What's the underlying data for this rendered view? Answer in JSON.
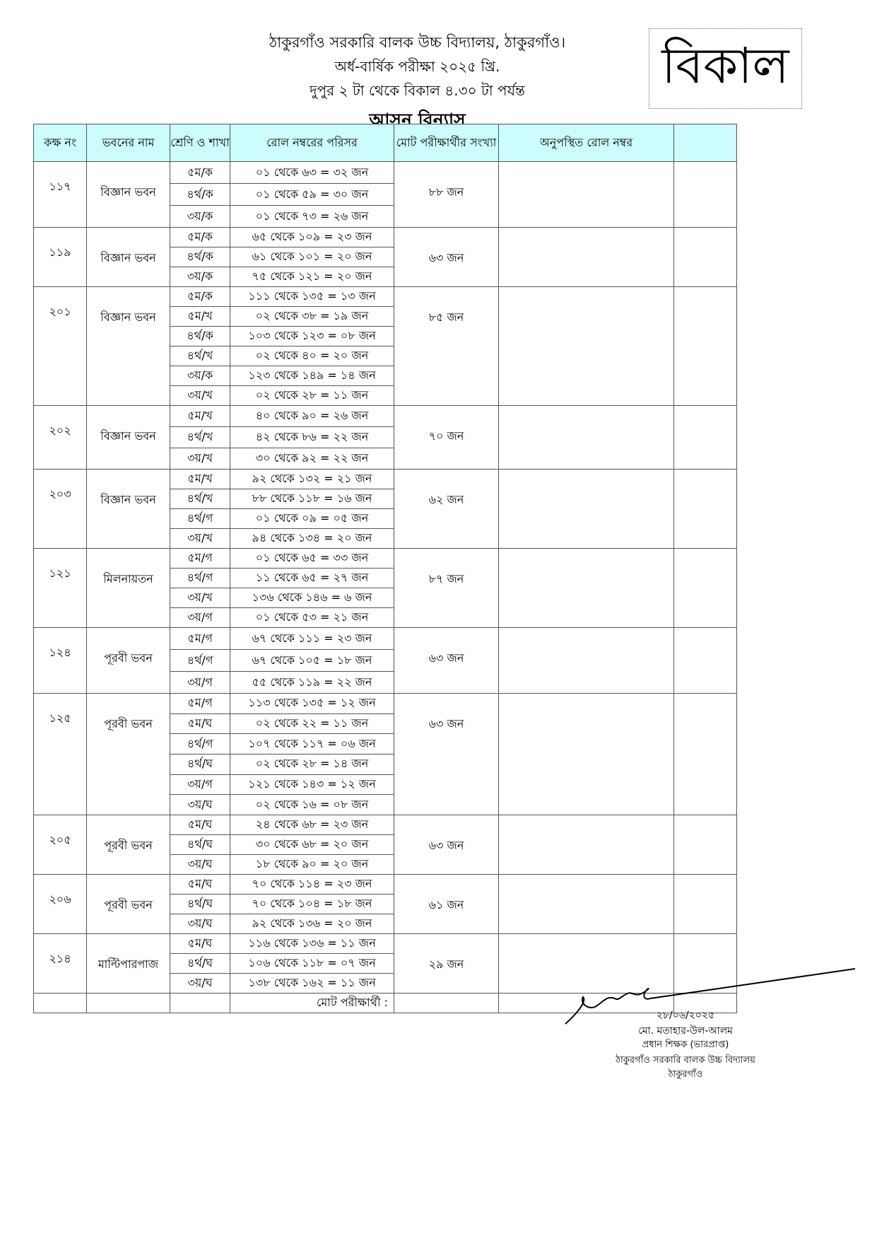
{
  "header": {
    "school": "ঠাকুরগাঁও সরকারি বালক উচ্চ বিদ্যালয়, ঠাকুরগাঁও।",
    "exam": "অর্ধ-বার্ষিক পরীক্ষা ২০২৫ খ্রি.",
    "time": "দুপুর ২ টা থেকে বিকাল ৪.৩০ টা পর্যন্ত",
    "title": "আসন বিন্যাস",
    "shift": "বিকাল"
  },
  "table": {
    "columns": [
      "কক্ষ নং",
      "ভবনের নাম",
      "শ্রেণি ও শাখা",
      "রোল নম্বরের পরিসর",
      "মোট পরীক্ষার্থীর সংখ্যা",
      "অনুপস্থিত রোল নম্বর",
      ""
    ],
    "header_color": "#ccfcfc",
    "rooms": [
      {
        "room": "১১৭",
        "building": "বিজ্ঞান ভবন",
        "total": "৮৮ জন",
        "rows": [
          {
            "class": "৫ম/ক",
            "range": "০১ থেকে ৬৩ = ৩২ জন"
          },
          {
            "class": "৪র্থ/ক",
            "range": "০১ থেকে ৫৯ = ৩০ জন"
          },
          {
            "class": "৩য়/ক",
            "range": "০১ থেকে ৭৩ = ২৬ জন"
          }
        ]
      },
      {
        "room": "১১৯",
        "building": "বিজ্ঞান ভবন",
        "total": "৬৩ জন",
        "rows": [
          {
            "class": "৫ম/ক",
            "range": "৬৫ থেকে ১০৯ = ২৩ জন"
          },
          {
            "class": "৪র্থ/ক",
            "range": "৬১ থেকে ১০১ = ২০ জন"
          },
          {
            "class": "৩য়/ক",
            "range": "৭৫ থেকে ১২১ = ২০ জন"
          }
        ]
      },
      {
        "room": "২০১",
        "building": "বিজ্ঞান ভবন",
        "total": "৮৫ জন",
        "rows": [
          {
            "class": "৫ম/ক",
            "range": "১১১ থেকে ১৩৫ = ১৩ জন"
          },
          {
            "class": "৫ম/খ",
            "range": "০২ থেকে ৩৮ = ১৯ জন"
          },
          {
            "class": "৪র্থ/ক",
            "range": "১০৩ থেকে ১২৩ = ০৮ জন"
          },
          {
            "class": "৪র্থ/খ",
            "range": "০২ থেকে ৪০ = ২০ জন"
          },
          {
            "class": "৩য়/ক",
            "range": "১২৩ থেকে ১৪৯ = ১৪ জন"
          },
          {
            "class": "৩য়/খ",
            "range": "০২ থেকে ২৮ = ১১ জন"
          }
        ]
      },
      {
        "room": "২০২",
        "building": "বিজ্ঞান ভবন",
        "total": "৭০ জন",
        "rows": [
          {
            "class": "৫ম/খ",
            "range": "৪০ থেকে ৯০ = ২৬ জন"
          },
          {
            "class": "৪র্থ/খ",
            "range": "৪২ থেকে ৮৬ = ২২ জন"
          },
          {
            "class": "৩য়/খ",
            "range": "৩০ থেকে ৯২ = ২২ জন"
          }
        ]
      },
      {
        "room": "২০৩",
        "building": "বিজ্ঞান ভবন",
        "total": "৬২ জন",
        "rows": [
          {
            "class": "৫ম/খ",
            "range": "৯২ থেকে ১৩২ = ২১ জন"
          },
          {
            "class": "৪র্থ/খ",
            "range": "৮৮ থেকে ১১৮ = ১৬ জন"
          },
          {
            "class": "৪র্থ/গ",
            "range": "০১ থেকে ০৯ = ০৫ জন"
          },
          {
            "class": "৩য়/খ",
            "range": "৯৪ থেকে ১৩৪ = ২০ জন"
          }
        ]
      },
      {
        "room": "১২১",
        "building": "মিলনায়তন",
        "total": "৮৭ জন",
        "rows": [
          {
            "class": "৫ম/গ",
            "range": "০১ থেকে ৬৫ = ৩৩ জন"
          },
          {
            "class": "৪র্থ/গ",
            "range": "১১ থেকে ৬৫ = ২৭ জন"
          },
          {
            "class": "৩য়/খ",
            "range": "১৩৬ থেকে ১৪৬ = ৬ জন"
          },
          {
            "class": "৩য়/গ",
            "range": "০১ থেকে ৫৩ = ২১ জন"
          }
        ]
      },
      {
        "room": "১২৪",
        "building": "পূরবী ভবন",
        "total": "৬৩ জন",
        "rows": [
          {
            "class": "৫ম/গ",
            "range": "৬৭ থেকে ১১১ = ২৩ জন"
          },
          {
            "class": "৪র্থ/গ",
            "range": "৬৭ থেকে ১০৫ = ১৮ জন"
          },
          {
            "class": "৩য়/গ",
            "range": "৫৫ থেকে ১১৯ = ২২ জন"
          }
        ]
      },
      {
        "room": "১২৫",
        "building": "পূরবী ভবন",
        "total": "৬৩ জন",
        "rows": [
          {
            "class": "৫ম/গ",
            "range": "১১৩ থেকে ১৩৫ = ১২ জন"
          },
          {
            "class": "৫ম/ঘ",
            "range": "০২ থেকে ২২ = ১১ জন"
          },
          {
            "class": "৪র্থ/গ",
            "range": "১০৭ থেকে ১১৭ = ০৬ জন"
          },
          {
            "class": "৪র্থ/ঘ",
            "range": "০২ থেকে ২৮ = ১৪ জন"
          },
          {
            "class": "৩য়/গ",
            "range": "১২১ থেকে ১৪৩ = ১২ জন"
          },
          {
            "class": "৩য়/ঘ",
            "range": "০২ থেকে ১৬ = ০৮ জন"
          }
        ]
      },
      {
        "room": "২০৫",
        "building": "পূরবী ভবন",
        "total": "৬৩ জন",
        "rows": [
          {
            "class": "৫ম/ঘ",
            "range": "২৪ থেকে ৬৮ = ২৩ জন"
          },
          {
            "class": "৪র্থ/ঘ",
            "range": "৩০ থেকে ৬৮ = ২০ জন"
          },
          {
            "class": "৩য়/ঘ",
            "range": "১৮ থেকে ৯০ = ২০ জন"
          }
        ]
      },
      {
        "room": "২০৬",
        "building": "পূরবী ভবন",
        "total": "৬১ জন",
        "rows": [
          {
            "class": "৫ম/ঘ",
            "range": "৭০ থেকে ১১৪ = ২৩ জন"
          },
          {
            "class": "৪র্থ/ঘ",
            "range": "৭০ থেকে ১০৪ = ১৮ জন"
          },
          {
            "class": "৩য়/ঘ",
            "range": "৯২ থেকে ১৩৬ = ২০ জন"
          }
        ]
      },
      {
        "room": "২১৪",
        "building": "মাল্টিপারপাজ",
        "total": "২৯ জন",
        "rows": [
          {
            "class": "৫ম/ঘ",
            "range": "১১৬ থেকে ১৩৬ = ১১ জন"
          },
          {
            "class": "৪র্থ/ঘ",
            "range": "১০৬ থেকে ১১৮ = ০৭ জন"
          },
          {
            "class": "৩য়/ঘ",
            "range": "১৩৮ থেকে ১৬২ = ১১ জন"
          }
        ]
      }
    ],
    "footer_label": "মোট পরীক্ষার্থী :"
  },
  "signature": {
    "date": "২৮/০৬/২০২৫",
    "name": "মো. মতাহার-উল-আলম",
    "designation": "প্রধান শিক্ষক (ভারপ্রাপ্ত)",
    "institution": "ঠাকুরগাঁও সরকারি বালক উচ্চ বিদ্যালয়",
    "place": "ঠাকুরগাঁও"
  }
}
